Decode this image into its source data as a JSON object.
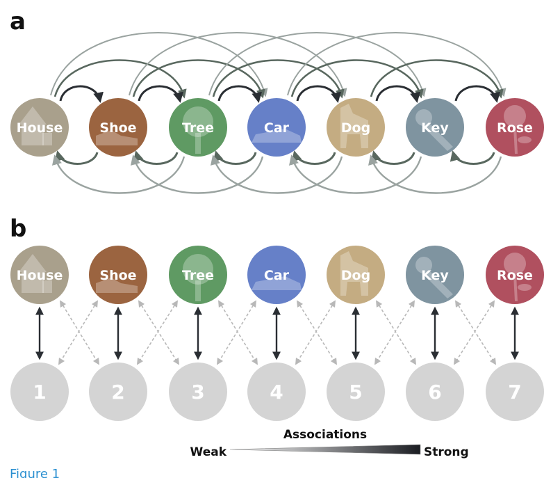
{
  "panels": {
    "a": "a",
    "b": "b"
  },
  "items": [
    {
      "label": "House",
      "color": "#a9a08c",
      "icon": "house-icon"
    },
    {
      "label": "Shoe",
      "color": "#9b6440",
      "icon": "shoe-icon"
    },
    {
      "label": "Tree",
      "color": "#5f9a63",
      "icon": "tree-icon"
    },
    {
      "label": "Car",
      "color": "#6680c8",
      "icon": "car-icon"
    },
    {
      "label": "Dog",
      "color": "#c4ac82",
      "icon": "dog-icon"
    },
    {
      "label": "Key",
      "color": "#7f94a0",
      "icon": "key-icon"
    },
    {
      "label": "Rose",
      "color": "#b0505f",
      "icon": "rose-icon"
    }
  ],
  "positions": [
    "1",
    "2",
    "3",
    "4",
    "5",
    "6",
    "7"
  ],
  "legend": {
    "title": "Associations",
    "weak": "Weak",
    "strong": "Strong"
  },
  "colors": {
    "strong_arrow": "#2a2e33",
    "medium_arrow": "#59685f",
    "weak_arrow": "#9aa3a0",
    "dashed_arrow": "#b8b8b8",
    "position_circle": "#d4d4d4"
  },
  "figure_label": "Figure 1"
}
